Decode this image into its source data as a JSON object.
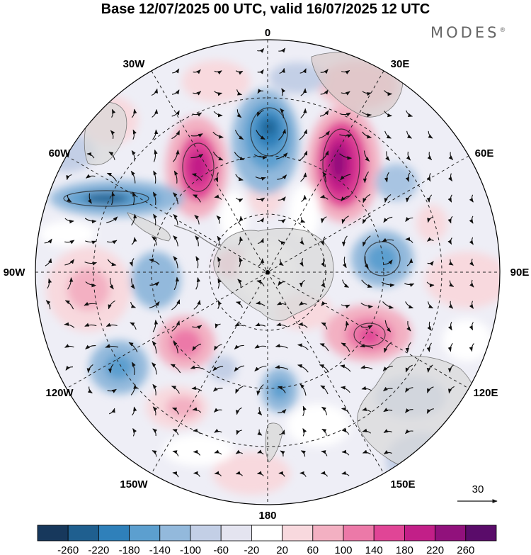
{
  "title": "Base 12/07/2025 00 UTC, valid 16/07/2025 12 UTC",
  "brand": "MODES",
  "brand_mark": "®",
  "lon_labels": {
    "top": "0",
    "bottom": "180",
    "left": "90W",
    "right": "90E",
    "upper_left_1": "30W",
    "upper_left_2": "60W",
    "upper_right_1": "30E",
    "upper_right_2": "60E",
    "lower_left_1": "120W",
    "lower_left_2": "150W",
    "lower_right_1": "120E",
    "lower_right_2": "150E"
  },
  "reference_vector": "30",
  "colorbar": {
    "ticks": [
      "-260",
      "-220",
      "-180",
      "-140",
      "-100",
      "-60",
      "-20",
      "20",
      "60",
      "100",
      "140",
      "180",
      "220",
      "260"
    ],
    "colors": [
      "#17385c",
      "#1f5f8f",
      "#2f80ba",
      "#5c9fcf",
      "#93b9dc",
      "#c3cfe6",
      "#e4e4f0",
      "#ffffff",
      "#f8d9de",
      "#f3b0c2",
      "#ec79a8",
      "#e04596",
      "#c21f88",
      "#91117c",
      "#5a0c6a"
    ]
  },
  "map": {
    "projection": "south-polar-stereographic",
    "land_color": "#d9d9d9",
    "grid_style": "dashed"
  }
}
